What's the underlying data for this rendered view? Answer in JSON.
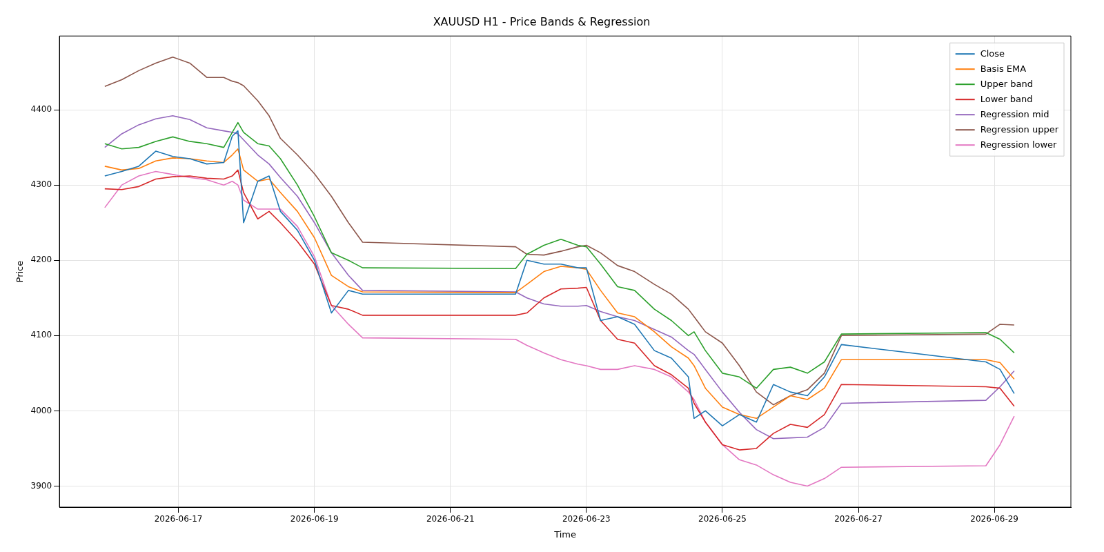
{
  "chart_data": {
    "type": "line",
    "title": "XAUUSD H1 - Price Bands & Regression",
    "xlabel": "Time",
    "ylabel": "Price",
    "x": [
      "2026-06-15T22:00",
      "2026-06-16T04:00",
      "2026-06-16T10:00",
      "2026-06-16T16:00",
      "2026-06-16T22:00",
      "2026-06-17T04:00",
      "2026-06-17T10:00",
      "2026-06-17T16:00",
      "2026-06-17T19:00",
      "2026-06-17T21:00",
      "2026-06-17T23:00",
      "2026-06-18T04:00",
      "2026-06-18T08:00",
      "2026-06-18T12:00",
      "2026-06-18T18:00",
      "2026-06-19T00:00",
      "2026-06-19T06:00",
      "2026-06-19T12:00",
      "2026-06-19T17:00",
      "2026-06-21T23:00",
      "2026-06-22T03:00",
      "2026-06-22T09:00",
      "2026-06-22T15:00",
      "2026-06-22T21:00",
      "2026-06-23T00:00",
      "2026-06-23T05:00",
      "2026-06-23T11:00",
      "2026-06-23T17:00",
      "2026-06-24T00:00",
      "2026-06-24T06:00",
      "2026-06-24T12:00",
      "2026-06-24T14:00",
      "2026-06-24T18:00",
      "2026-06-25T00:00",
      "2026-06-25T06:00",
      "2026-06-25T12:00",
      "2026-06-25T18:00",
      "2026-06-26T00:00",
      "2026-06-26T06:00",
      "2026-06-26T12:00",
      "2026-06-26T18:00",
      "2026-06-28T21:00",
      "2026-06-29T02:00",
      "2026-06-29T07:00"
    ],
    "series": [
      {
        "name": "Close",
        "color": "#1f77b4",
        "values": [
          4312,
          4318,
          4325,
          4345,
          4338,
          4335,
          4328,
          4330,
          4365,
          4372,
          4250,
          4305,
          4312,
          4265,
          4240,
          4200,
          4130,
          4160,
          4155,
          4155,
          4200,
          4195,
          4195,
          4190,
          4190,
          4120,
          4125,
          4115,
          4080,
          4070,
          4045,
          3990,
          4000,
          3980,
          3995,
          3985,
          4035,
          4025,
          4020,
          4045,
          4088,
          4065,
          4055,
          4023
        ]
      },
      {
        "name": "Basis EMA",
        "color": "#ff7f0e",
        "values": [
          4325,
          4320,
          4322,
          4332,
          4336,
          4335,
          4332,
          4330,
          4340,
          4348,
          4320,
          4305,
          4308,
          4290,
          4265,
          4230,
          4180,
          4165,
          4158,
          4157,
          4168,
          4185,
          4192,
          4190,
          4188,
          4160,
          4130,
          4125,
          4105,
          4085,
          4070,
          4060,
          4030,
          4005,
          3995,
          3990,
          4005,
          4020,
          4015,
          4030,
          4068,
          4068,
          4064,
          4042
        ]
      },
      {
        "name": "Upper band",
        "color": "#2ca02c",
        "values": [
          4355,
          4348,
          4350,
          4358,
          4364,
          4358,
          4355,
          4350,
          4370,
          4383,
          4370,
          4355,
          4352,
          4335,
          4300,
          4258,
          4210,
          4200,
          4190,
          4189,
          4208,
          4220,
          4228,
          4220,
          4218,
          4195,
          4165,
          4160,
          4135,
          4120,
          4100,
          4105,
          4080,
          4050,
          4045,
          4030,
          4055,
          4058,
          4050,
          4065,
          4102,
          4104,
          4095,
          4077
        ]
      },
      {
        "name": "Lower band",
        "color": "#d62728",
        "values": [
          4295,
          4294,
          4298,
          4308,
          4311,
          4312,
          4309,
          4308,
          4312,
          4320,
          4290,
          4255,
          4265,
          4250,
          4225,
          4195,
          4140,
          4135,
          4127,
          4127,
          4130,
          4150,
          4162,
          4163,
          4164,
          4120,
          4095,
          4090,
          4060,
          4048,
          4030,
          4010,
          3985,
          3955,
          3948,
          3950,
          3970,
          3982,
          3978,
          3995,
          4035,
          4032,
          4030,
          4006
        ]
      },
      {
        "name": "Regression mid",
        "color": "#9467bd",
        "values": [
          4350,
          4368,
          4380,
          4388,
          4392,
          4387,
          4376,
          4372,
          4370,
          4368,
          4360,
          4340,
          4328,
          4310,
          4285,
          4250,
          4210,
          4180,
          4160,
          4158,
          4150,
          4142,
          4139,
          4139,
          4140,
          4132,
          4125,
          4120,
          4108,
          4098,
          4080,
          4075,
          4055,
          4025,
          3998,
          3975,
          3963,
          3964,
          3965,
          3978,
          4010,
          4014,
          4032,
          4053
        ]
      },
      {
        "name": "Regression upper",
        "color": "#8c564b",
        "values": [
          4431,
          4440,
          4452,
          4462,
          4470,
          4462,
          4443,
          4443,
          4438,
          4436,
          4432,
          4412,
          4392,
          4362,
          4340,
          4315,
          4285,
          4250,
          4224,
          4218,
          4208,
          4207,
          4212,
          4218,
          4220,
          4210,
          4193,
          4185,
          4168,
          4155,
          4135,
          4125,
          4105,
          4090,
          4060,
          4025,
          4008,
          4020,
          4028,
          4050,
          4100,
          4102,
          4115,
          4114
        ]
      },
      {
        "name": "Regression lower",
        "color": "#e377c2",
        "values": [
          4270,
          4300,
          4312,
          4318,
          4314,
          4310,
          4307,
          4300,
          4305,
          4300,
          4280,
          4268,
          4268,
          4268,
          4245,
          4205,
          4140,
          4115,
          4097,
          4095,
          4087,
          4077,
          4068,
          4062,
          4060,
          4055,
          4055,
          4060,
          4055,
          4045,
          4025,
          4015,
          3985,
          3955,
          3935,
          3928,
          3915,
          3905,
          3900,
          3910,
          3925,
          3927,
          3955,
          3993
        ]
      }
    ],
    "xlim": [
      "2026-06-15T06:00",
      "2026-06-30T03:00"
    ],
    "xticks": [
      "2026-06-17",
      "2026-06-19",
      "2026-06-21",
      "2026-06-23",
      "2026-06-25",
      "2026-06-27",
      "2026-06-29"
    ],
    "ylim": [
      3872,
      4498
    ],
    "yticks": [
      3900,
      4000,
      4100,
      4200,
      4300,
      4400
    ],
    "grid": true,
    "legend": "top right",
    "marker": "none",
    "line_style": "solid"
  }
}
